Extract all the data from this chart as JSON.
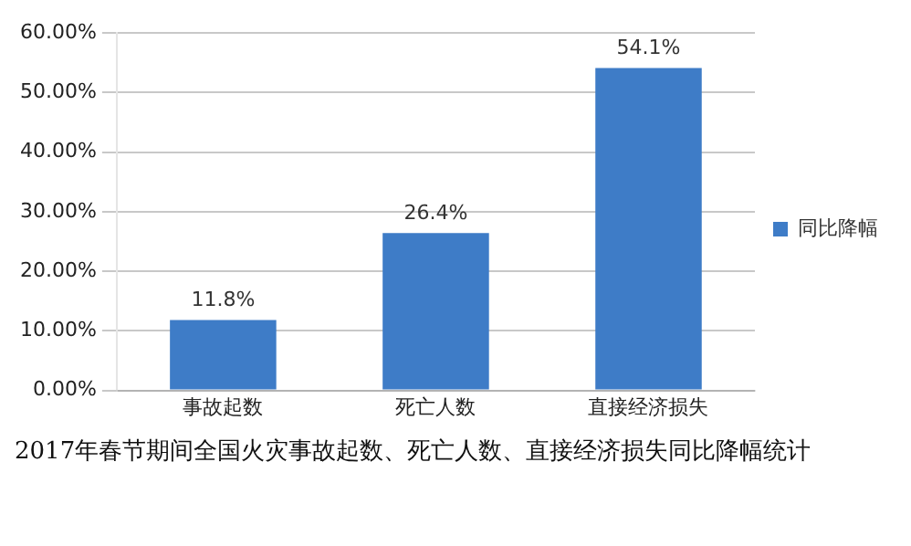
{
  "chart_data": {
    "type": "bar",
    "categories": [
      "事故起数",
      "死亡人数",
      "直接经济损失"
    ],
    "series": [
      {
        "name": "同比降幅",
        "color": "#3e7cc7",
        "values": [
          11.8,
          26.4,
          54.1
        ],
        "value_labels": [
          "11.8%",
          "26.4%",
          "54.1%"
        ]
      }
    ],
    "ylim": [
      0,
      60
    ],
    "yticks": [
      {
        "value": 0,
        "label": "0.00%"
      },
      {
        "value": 10,
        "label": "10.00%"
      },
      {
        "value": 20,
        "label": "20.00%"
      },
      {
        "value": 30,
        "label": "30.00%"
      },
      {
        "value": 40,
        "label": "40.00%"
      },
      {
        "value": 50,
        "label": "50.00%"
      },
      {
        "value": 60,
        "label": "60.00%"
      }
    ],
    "grid": "y",
    "legend": "right",
    "annotations": [
      "2017年春节期间全国火灾事故起数、死亡人数、直接经济损失同比降幅统计"
    ]
  }
}
